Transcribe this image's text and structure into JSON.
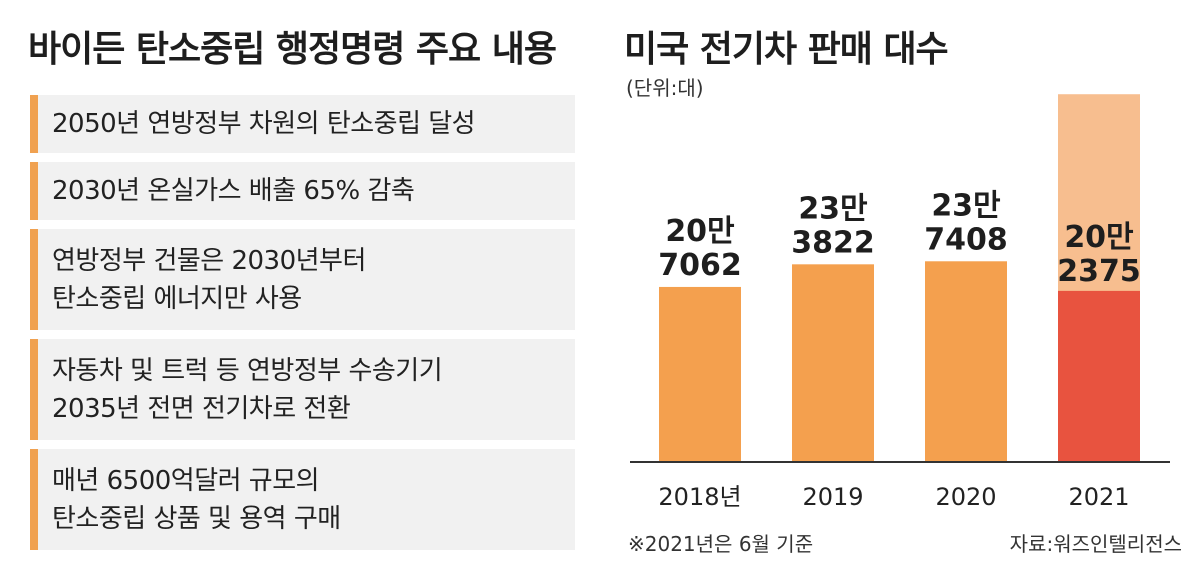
{
  "left_panel": {
    "title": "바이든 탄소중립 행정명령 주요 내용",
    "items": [
      {
        "lines": [
          "2050년 연방정부 차원의 탄소중립 달성"
        ]
      },
      {
        "lines": [
          "2030년 온실가스 배출 65% 감축"
        ]
      },
      {
        "lines": [
          "연방정부 건물은 2030년부터",
          "탄소중립 에너지만 사용"
        ]
      },
      {
        "lines": [
          "자동차 및 트럭 등 연방정부 수송기기",
          "2035년 전면 전기차로 전환"
        ]
      },
      {
        "lines": [
          "매년 6500억달러 규모의",
          "탄소중립 상품 및 용역 구매"
        ]
      }
    ],
    "accent_color": "#f0a150"
  },
  "right_panel": {
    "title": "미국 전기차 판매 대수",
    "unit": "(단위:대)",
    "note": "※2021년은 6월 기준",
    "source": "자료:워즈인텔리전스"
  },
  "chart_data": {
    "type": "bar",
    "title": "미국 전기차 판매 대수",
    "categories": [
      "2018년",
      "2019",
      "2020",
      "2021"
    ],
    "values": [
      207062,
      233822,
      237408,
      202375
    ],
    "value_labels": [
      [
        "20만",
        "7062"
      ],
      [
        "23만",
        "3822"
      ],
      [
        "23만",
        "7408"
      ],
      [
        "20만",
        "2375"
      ]
    ],
    "highlight_index": 3,
    "projection_2021_total": 435000,
    "ylim": [
      0,
      440000
    ],
    "colors": {
      "bar": "#f4a04e",
      "highlight": "#e8533f",
      "projection": "#f7be8f",
      "axis": "#333333"
    }
  }
}
